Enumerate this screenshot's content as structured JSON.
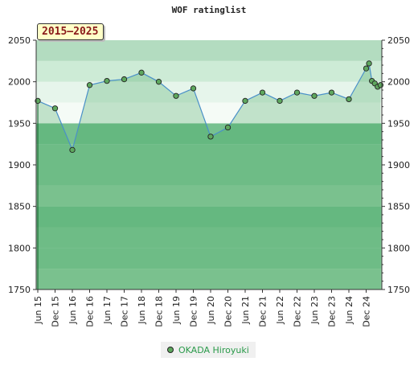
{
  "chart_data": {
    "type": "line",
    "title": "WOF ratinglist",
    "period_badge": "2015–2025",
    "ylim": [
      1750,
      2050
    ],
    "y_ticks": [
      1750,
      1800,
      1850,
      1900,
      1950,
      2000,
      2050
    ],
    "x_tick_labels": [
      "Jun 15",
      "Dec 15",
      "Jun 16",
      "Dec 16",
      "Jun 17",
      "Dec 17",
      "Jun 18",
      "Dec 18",
      "Jun 19",
      "Dec 19",
      "Jun 20",
      "Dec 20",
      "Jun 21",
      "Dec 21",
      "Jun 22",
      "Dec 22",
      "Jun 23",
      "Dec 23",
      "Jun 24",
      "Dec 24"
    ],
    "legend_placement": "bottom-center",
    "grid": false,
    "series": [
      {
        "name": "OKADA Hiroyuki",
        "color": "#5ea85e",
        "line_color": "#4a90c8",
        "x": [
          "2015-06",
          "2015-12",
          "2016-06",
          "2016-12",
          "2017-06",
          "2017-12",
          "2018-06",
          "2018-12",
          "2019-06",
          "2019-12",
          "2020-06",
          "2020-12",
          "2021-06",
          "2021-12",
          "2022-06",
          "2022-12",
          "2023-06",
          "2023-12",
          "2024-06",
          "2024-12",
          "2025-01",
          "2025-02",
          "2025-03",
          "2025-04",
          "2025-05"
        ],
        "values": [
          1977,
          1968,
          1918,
          1996,
          2001,
          2003,
          2011,
          2000,
          1983,
          1992,
          1934,
          1945,
          1977,
          1987,
          1977,
          1987,
          1983,
          1987,
          1979,
          2016,
          2022,
          2001,
          1998,
          1994,
          1996
        ]
      }
    ]
  }
}
